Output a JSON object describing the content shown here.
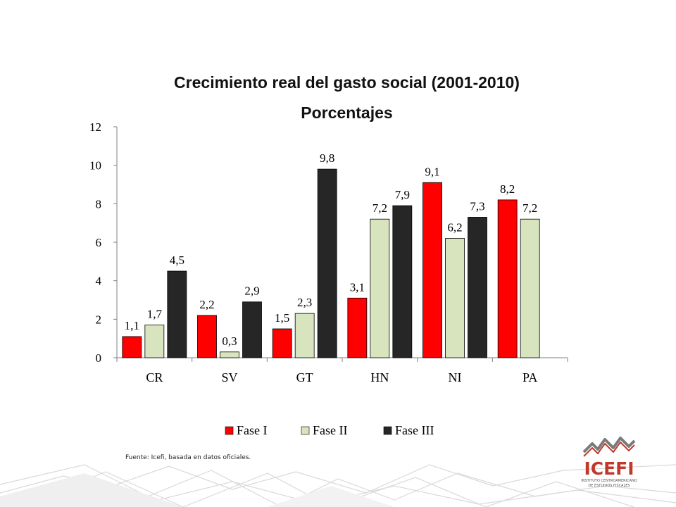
{
  "title": "Crecimiento real del gasto social (2001-2010)",
  "subtitle": "Porcentajes",
  "source": "Fuente: Icefi, basada en datos oficiales.",
  "logo": {
    "name": "ICEFI",
    "tagline_1": "INSTITUTO CENTROAMERICANO",
    "tagline_2": "DE ESTUDIOS FISCALES"
  },
  "chart_data": {
    "type": "bar",
    "title": "Crecimiento real del gasto social (2001-2010)",
    "subtitle": "Porcentajes",
    "categories": [
      "CR",
      "SV",
      "GT",
      "HN",
      "NI",
      "PA"
    ],
    "series": [
      {
        "name": "Fase I",
        "color": "#ff0000",
        "values": [
          1.1,
          2.2,
          1.5,
          3.1,
          9.1,
          8.2
        ],
        "labels": [
          "1,1",
          "2,2",
          "1,5",
          "3,1",
          "9,1",
          "8,2"
        ]
      },
      {
        "name": "Fase II",
        "color": "#d7e4bd",
        "values": [
          1.7,
          0.3,
          2.3,
          7.2,
          6.2,
          7.2
        ],
        "labels": [
          "1,7",
          "0,3",
          "2,3",
          "7,2",
          "6,2",
          "7,2"
        ]
      },
      {
        "name": "Fase III",
        "color": "#262626",
        "values": [
          4.5,
          2.9,
          9.8,
          7.9,
          7.3,
          null
        ],
        "labels": [
          "4,5",
          "2,9",
          "9,8",
          "7,9",
          "7,3",
          null
        ]
      }
    ],
    "yticks": [
      "0",
      "2",
      "4",
      "6",
      "8",
      "10",
      "12"
    ],
    "ylim": [
      0,
      12
    ],
    "grid": false,
    "legend_position": "bottom",
    "xlabel": "",
    "ylabel": ""
  }
}
